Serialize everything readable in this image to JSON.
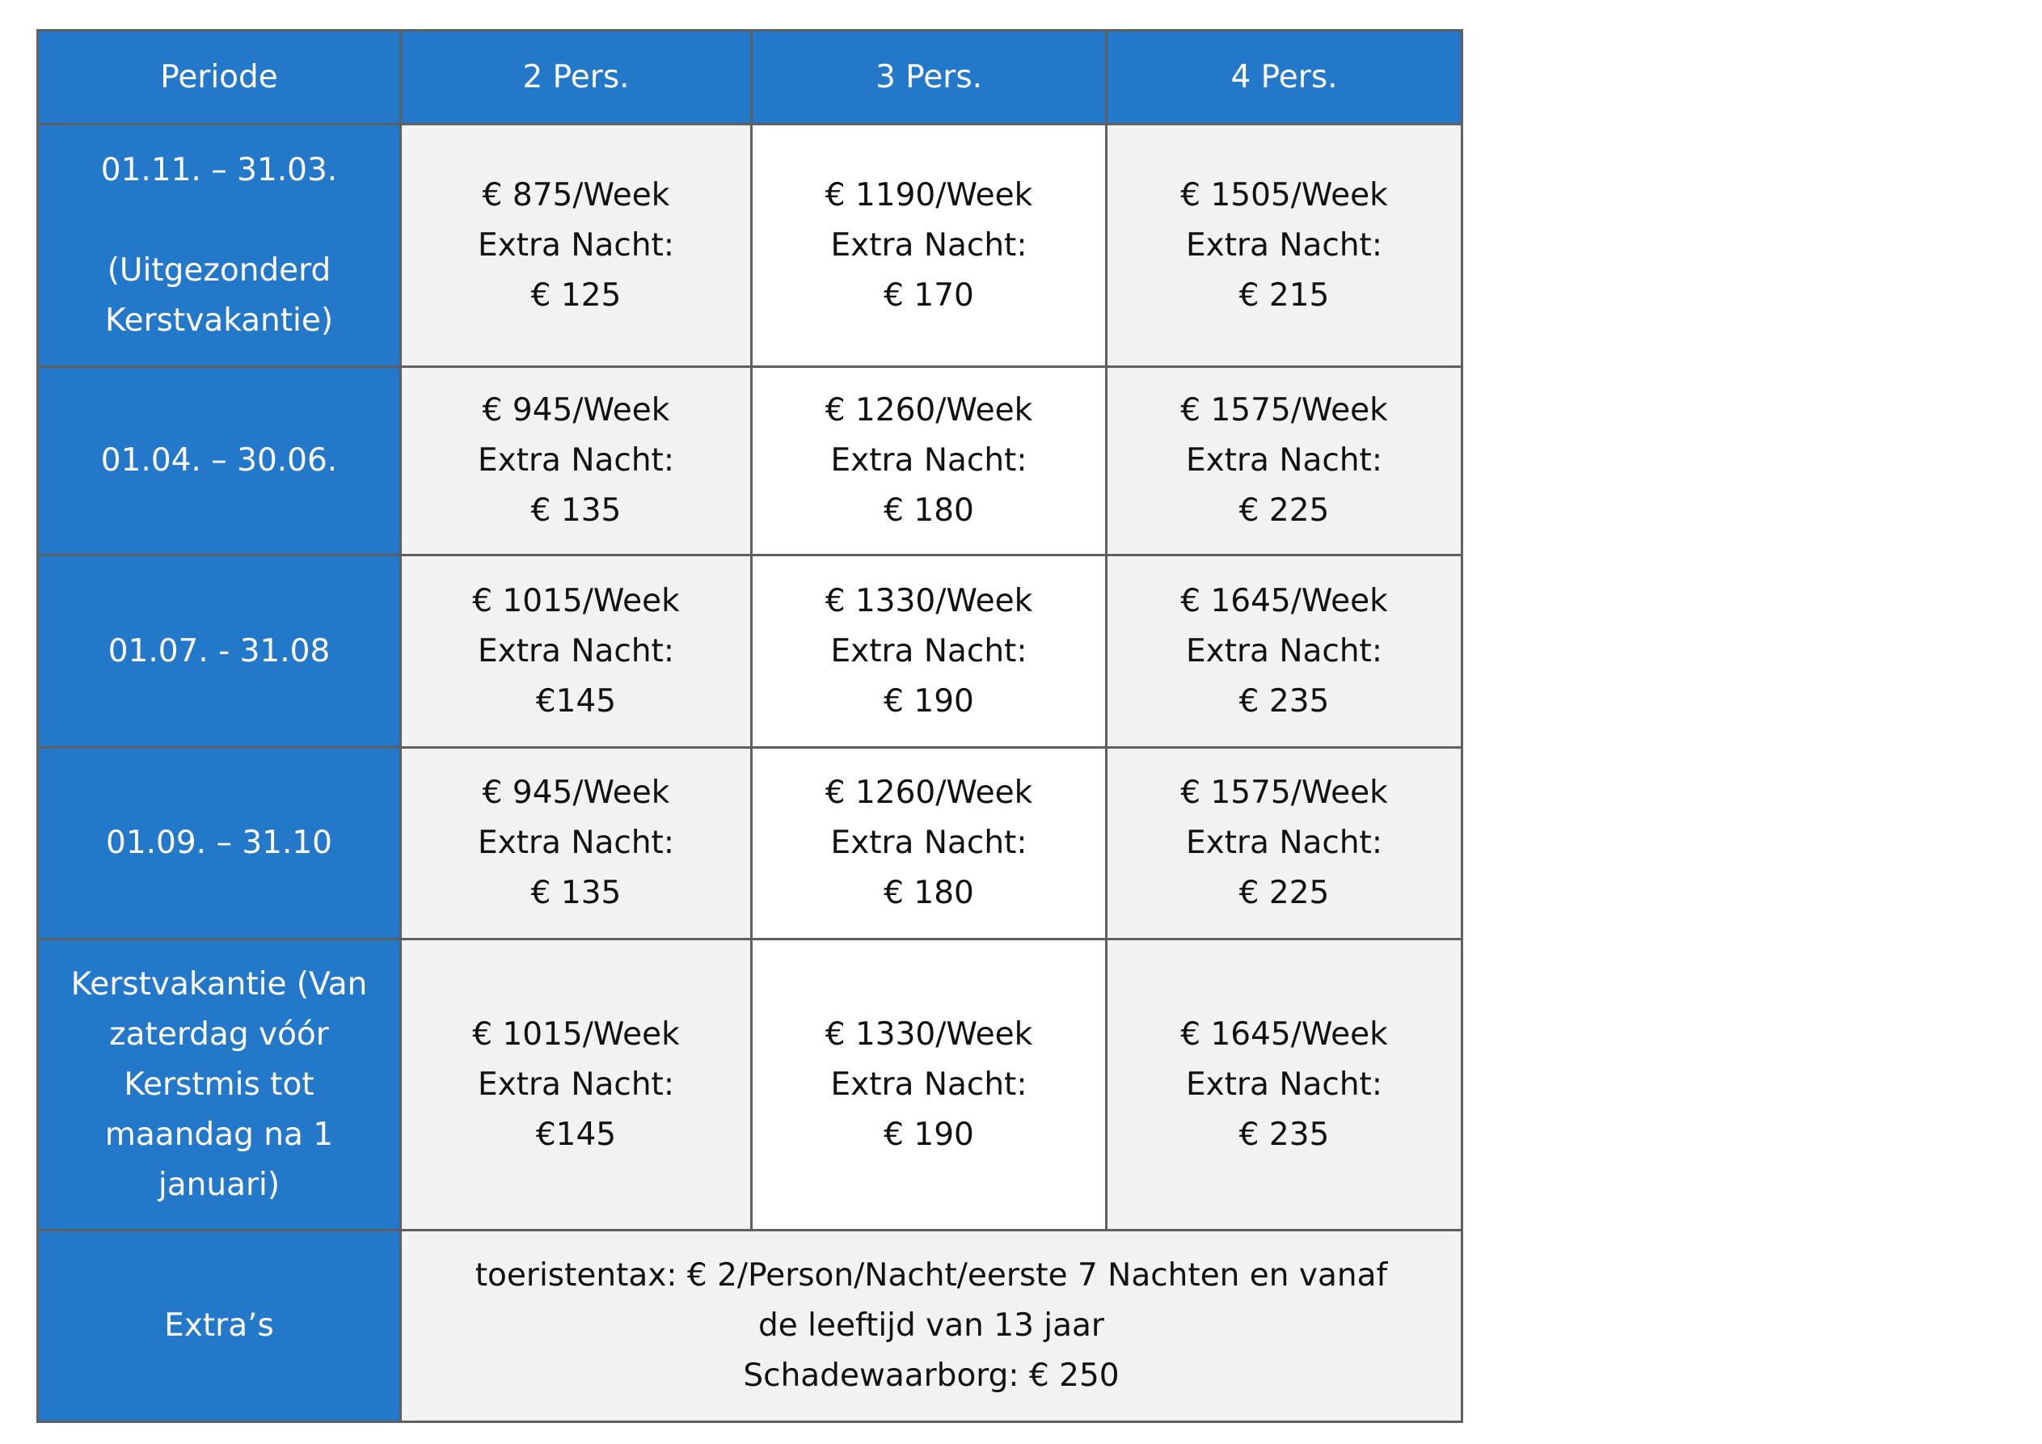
{
  "colors": {
    "header_bg": "#2378c9",
    "cell_gray": "#f2f2f2",
    "cell_white": "#ffffff",
    "border": "#5f5f5f"
  },
  "headers": [
    "Periode",
    "2 Pers.",
    "3 Pers.",
    "4 Pers."
  ],
  "rows": [
    {
      "period": [
        "01.11. – 31.03.",
        "",
        "(Uitgezonderd",
        "Kerstvakantie)"
      ],
      "cells": [
        [
          "€ 875/Week",
          "Extra Nacht:",
          "€ 125"
        ],
        [
          "€ 1190/Week",
          "Extra Nacht:",
          "€ 170"
        ],
        [
          "€ 1505/Week",
          "Extra Nacht:",
          "€ 215"
        ]
      ]
    },
    {
      "period": [
        "01.04. – 30.06."
      ],
      "cells": [
        [
          "€ 945/Week",
          "Extra Nacht:",
          "€ 135"
        ],
        [
          "€ 1260/Week",
          "Extra Nacht:",
          "€ 180"
        ],
        [
          "€ 1575/Week",
          "Extra Nacht:",
          "€ 225"
        ]
      ]
    },
    {
      "period": [
        "01.07.  - 31.08"
      ],
      "cells": [
        [
          "€ 1015/Week",
          "Extra Nacht:",
          "€145"
        ],
        [
          "€ 1330/Week",
          "Extra Nacht:",
          "€ 190"
        ],
        [
          "€ 1645/Week",
          "Extra Nacht:",
          "€ 235"
        ]
      ]
    },
    {
      "period": [
        "01.09. – 31.10"
      ],
      "cells": [
        [
          "€ 945/Week",
          "Extra Nacht:",
          "€ 135"
        ],
        [
          "€ 1260/Week",
          "Extra Nacht:",
          "€ 180"
        ],
        [
          "€ 1575/Week",
          "Extra Nacht:",
          "€ 225"
        ]
      ]
    },
    {
      "period": [
        "Kerstvakantie (Van",
        "zaterdag vóór",
        "Kerstmis tot",
        "maandag na 1",
        "januari)"
      ],
      "cells": [
        [
          "€ 1015/Week",
          "Extra Nacht:",
          "€145"
        ],
        [
          "€ 1330/Week",
          "Extra Nacht:",
          "€ 190"
        ],
        [
          "€ 1645/Week",
          "Extra Nacht:",
          "€ 235"
        ]
      ]
    }
  ],
  "extras": {
    "label": "Extra’s",
    "lines": [
      "toeristentax: € 2/Person/Nacht/eerste 7 Nachten en vanaf",
      "de leeftijd van 13 jaar",
      "Schadewaarborg: € 250"
    ]
  }
}
